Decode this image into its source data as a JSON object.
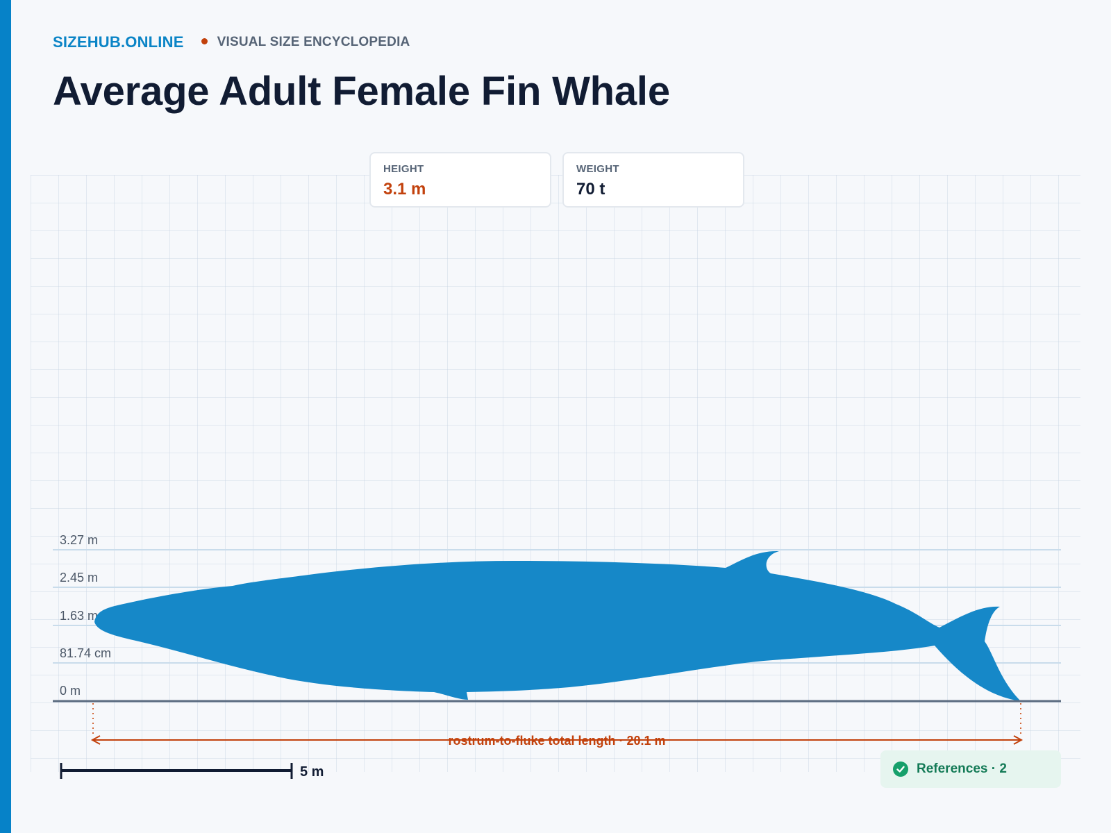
{
  "header": {
    "brand": "SIZEHUB.ONLINE",
    "tagline": "VISUAL SIZE ENCYCLOPEDIA",
    "title": "Average Adult Female Fin Whale"
  },
  "stats": {
    "height": {
      "label": "HEIGHT",
      "value": "3.1 m"
    },
    "weight": {
      "label": "WEIGHT",
      "value": "70 t"
    }
  },
  "scale_ticks": [
    "3.27 m",
    "2.45 m",
    "1.63 m",
    "81.74 cm",
    "0 m"
  ],
  "silhouette": {
    "icon": "fin-whale-silhouette",
    "color": "#1688c8"
  },
  "length_annotation": "rostrum-to-fluke total length · 20.1 m",
  "scale_bar": {
    "label": "5 m"
  },
  "references": {
    "label": "References · 2",
    "icon": "check-circle-icon",
    "color": "#16a06b"
  },
  "colors": {
    "accent": "#0682c8",
    "highlight": "#c2410c",
    "text": "#111c33"
  }
}
